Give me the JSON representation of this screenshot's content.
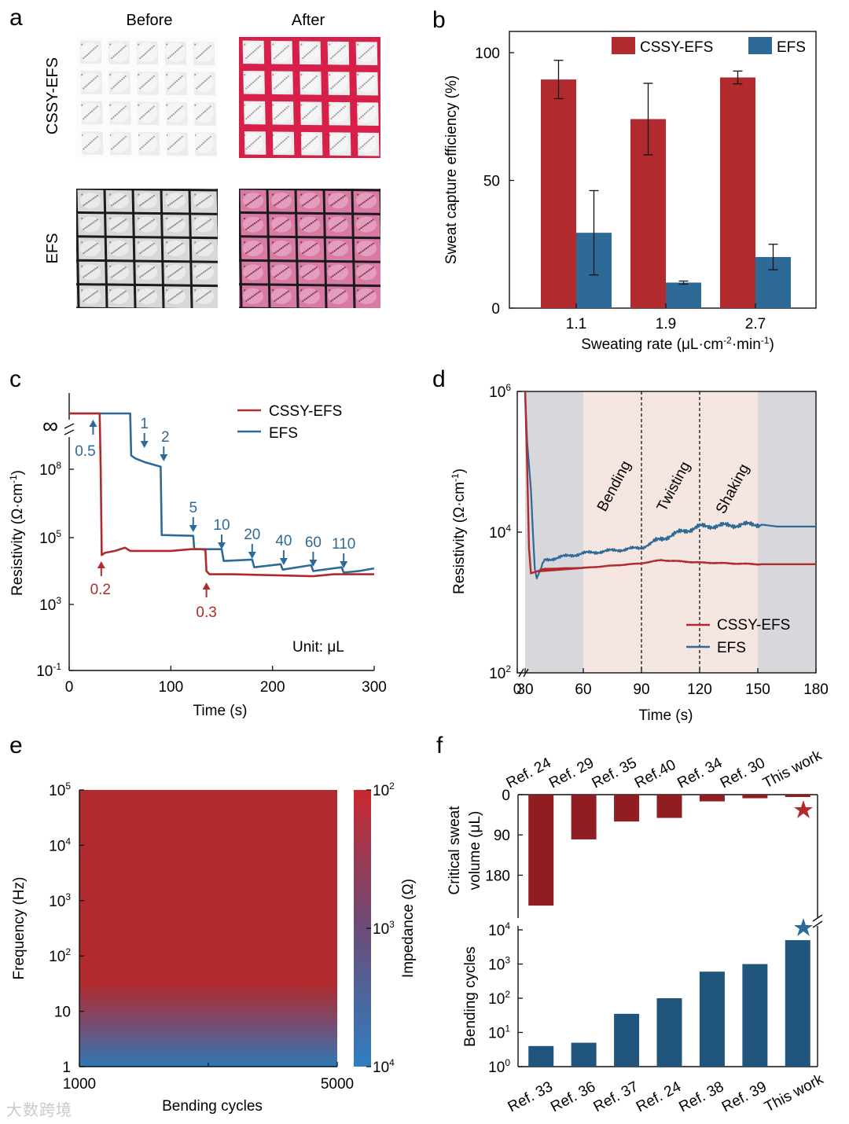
{
  "panel_letters": [
    "a",
    "b",
    "c",
    "d",
    "e",
    "f"
  ],
  "colors": {
    "cssy": "#b02a2e",
    "efs": "#2e6a98",
    "cssy_dark": "#8f1d21",
    "efs_dark": "#21567c",
    "gray_band": "#d8d8dc",
    "pink_band": "#f6e6e1",
    "photo_red": "#d6204a",
    "photo_pink": "#d87aa3"
  },
  "panel_a": {
    "col_labels": [
      "Before",
      "After"
    ],
    "row_labels": [
      "CSSY-EFS",
      "EFS"
    ]
  },
  "chart_data": [
    {
      "panel": "b",
      "type": "bar",
      "categories": [
        "1.1",
        "1.9",
        "2.7"
      ],
      "series": [
        {
          "name": "CSSY-EFS",
          "values": [
            89.5,
            74,
            90.3
          ],
          "errors": [
            7.5,
            14,
            2.5
          ]
        },
        {
          "name": "EFS",
          "values": [
            29.5,
            10,
            20
          ],
          "errors": [
            16.5,
            0.6,
            5
          ]
        }
      ],
      "xlabel": "Sweating rate (μL·cm-2·min-1)",
      "xlabel_parts": [
        "Sweating rate (μL·cm",
        "-2",
        "·min",
        "-1",
        ")"
      ],
      "ylabel": "Sweat capture efficiency (%)",
      "ylim": [
        0,
        100
      ],
      "yticks": [
        "0",
        "50",
        "100"
      ],
      "legend_position": "top-right"
    },
    {
      "panel": "c",
      "type": "line",
      "xlabel": "Time (s)",
      "ylabel_parts": [
        "Resistivity (Ω·cm",
        "-1",
        ")"
      ],
      "xlim": [
        0,
        300
      ],
      "xticks": [
        "0",
        "100",
        "200",
        "300"
      ],
      "y_scale": "log",
      "ytick_labels": [
        {
          "base": "10",
          "exp": "-1"
        },
        {
          "base": "10",
          "exp": "3"
        },
        {
          "base": "10",
          "exp": "5"
        },
        {
          "base": "10",
          "exp": "8"
        }
      ],
      "infinity_label": "∞",
      "unit_note": "Unit: μL",
      "series": [
        {
          "name": "CSSY-EFS",
          "points": [
            [
              0,
              "inf"
            ],
            [
              30,
              "inf"
            ],
            [
              31,
              100000000.0
            ],
            [
              32,
              30000.0
            ],
            [
              35,
              35000.0
            ],
            [
              45,
              40000.0
            ],
            [
              55,
              50000.0
            ],
            [
              60,
              40000.0
            ],
            [
              70,
              40000.0
            ],
            [
              100,
              40000.0
            ],
            [
              120,
              45000.0
            ],
            [
              130,
              45000.0
            ],
            [
              134,
              43000.0
            ],
            [
              135,
              10000.0
            ],
            [
              138,
              8000.0
            ],
            [
              160,
              8000.0
            ],
            [
              200,
              7500.0
            ],
            [
              240,
              7000.0
            ],
            [
              260,
              8000.0
            ],
            [
              300,
              8000.0
            ]
          ]
        },
        {
          "name": "EFS",
          "points": [
            [
              0,
              "inf"
            ],
            [
              60,
              "inf"
            ],
            [
              61,
              400000000.0
            ],
            [
              65,
              300000000.0
            ],
            [
              75,
              200000000.0
            ],
            [
              90,
              130000000.0
            ],
            [
              91,
              130000.0
            ],
            [
              122,
              120000.0
            ],
            [
              123,
              45000.0
            ],
            [
              150,
              45000.0
            ],
            [
              152,
              20000.0
            ],
            [
              180,
              22000.0
            ],
            [
              182,
              13000.0
            ],
            [
              208,
              16000.0
            ],
            [
              210,
              11000.0
            ],
            [
              238,
              15000.0
            ],
            [
              240,
              10000.0
            ],
            [
              268,
              13000.0
            ],
            [
              270,
              9000.0
            ],
            [
              285,
              10000.0
            ],
            [
              300,
              12000.0
            ]
          ]
        }
      ],
      "annotations_efs": [
        {
          "label": "0.5",
          "t": 22
        },
        {
          "label": "1",
          "t": 74
        },
        {
          "label": "2",
          "t": 93
        },
        {
          "label": "5",
          "t": 122
        },
        {
          "label": "10",
          "t": 150
        },
        {
          "label": "20",
          "t": 180
        },
        {
          "label": "40",
          "t": 211
        },
        {
          "label": "60",
          "t": 240
        },
        {
          "label": "110",
          "t": 270
        }
      ],
      "annotations_cssy": [
        {
          "label": "0.2",
          "t": 30
        },
        {
          "label": "0.3",
          "t": 135
        }
      ]
    },
    {
      "panel": "d",
      "type": "line",
      "xlabel": "Time (s)",
      "ylabel_parts": [
        "Resistivity (Ω·cm",
        "-1",
        ")"
      ],
      "xticks": [
        "0",
        "30",
        "60",
        "90",
        "120",
        "150",
        "180"
      ],
      "y_scale": "log",
      "ytick_labels": [
        {
          "base": "10",
          "exp": "2"
        },
        {
          "base": "10",
          "exp": "4"
        },
        {
          "base": "10",
          "exp": "6"
        }
      ],
      "regions": [
        "Bending",
        "Twisting",
        "Shaking"
      ],
      "region_bounds_s": [
        60,
        90,
        120,
        150
      ],
      "series": [
        {
          "name": "CSSY-EFS",
          "points": [
            [
              30,
              1000000.0
            ],
            [
              31,
              100000.0
            ],
            [
              32,
              6000.0
            ],
            [
              33,
              2600.0
            ],
            [
              40,
              3000.0
            ],
            [
              60,
              3100.0
            ],
            [
              90,
              3600.0
            ],
            [
              100,
              4000.0
            ],
            [
              120,
              3700.0
            ],
            [
              150,
              3500.0
            ],
            [
              180,
              3500.0
            ]
          ]
        },
        {
          "name": "EFS",
          "points": [
            [
              30,
              1000000.0
            ],
            [
              31,
              200000.0
            ],
            [
              33,
              40000.0
            ],
            [
              34,
              10000.0
            ],
            [
              35,
              3000.0
            ],
            [
              36,
              2200.0
            ],
            [
              40,
              4000.0
            ],
            [
              50,
              4500.0
            ],
            [
              60,
              5000.0
            ],
            [
              90,
              6000.0
            ],
            [
              100,
              8000.0
            ],
            [
              110,
              10000.0
            ],
            [
              120,
              12000.0
            ],
            [
              150,
              13000.0
            ],
            [
              160,
              12000.0
            ],
            [
              180,
              12000.0
            ]
          ]
        }
      ],
      "legend_position": "bottom-right"
    },
    {
      "panel": "e",
      "type": "heatmap",
      "xlabel": "Bending cycles",
      "xticks": [
        "1000",
        "5000"
      ],
      "ylabel": "Frequency (Hz)",
      "ytick_labels": [
        {
          "base": "1",
          "exp": ""
        },
        {
          "base": "10",
          "exp": ""
        },
        {
          "base": "10",
          "exp": "2"
        },
        {
          "base": "10",
          "exp": "3"
        },
        {
          "base": "10",
          "exp": "4"
        },
        {
          "base": "10",
          "exp": "5"
        }
      ],
      "colorbar_label": "Impedance (Ω)",
      "colorbar_ticks": [
        {
          "base": "10",
          "exp": "2"
        },
        {
          "base": "10",
          "exp": "3"
        },
        {
          "base": "10",
          "exp": "4"
        }
      ]
    },
    {
      "panel": "f-top",
      "type": "bar",
      "categories": [
        "Ref. 24",
        "Ref. 29",
        "Ref. 35",
        "Ref.40",
        "Ref. 34",
        "Ref. 30",
        "This work"
      ],
      "values": [
        248,
        100,
        60,
        52,
        15,
        8,
        3
      ],
      "ylabel_lines": [
        "Critical sweat",
        "volume (μL)"
      ],
      "ylim": [
        0,
        260
      ],
      "yticks": [
        "0",
        "90",
        "180"
      ],
      "inverted": true
    },
    {
      "panel": "f-bottom",
      "type": "bar",
      "categories": [
        "Ref. 33",
        "Ref. 36",
        "Ref. 37",
        "Ref. 24",
        "Ref. 38",
        "Ref. 39",
        "This work"
      ],
      "values": [
        4,
        5,
        35,
        100,
        600,
        1000,
        5000
      ],
      "ylabel": "Bending cycles",
      "y_scale": "log",
      "ytick_labels": [
        {
          "base": "10",
          "exp": "0"
        },
        {
          "base": "10",
          "exp": "1"
        },
        {
          "base": "10",
          "exp": "2"
        },
        {
          "base": "10",
          "exp": "3"
        },
        {
          "base": "10",
          "exp": "4"
        }
      ]
    }
  ],
  "watermark": "大数跨境"
}
